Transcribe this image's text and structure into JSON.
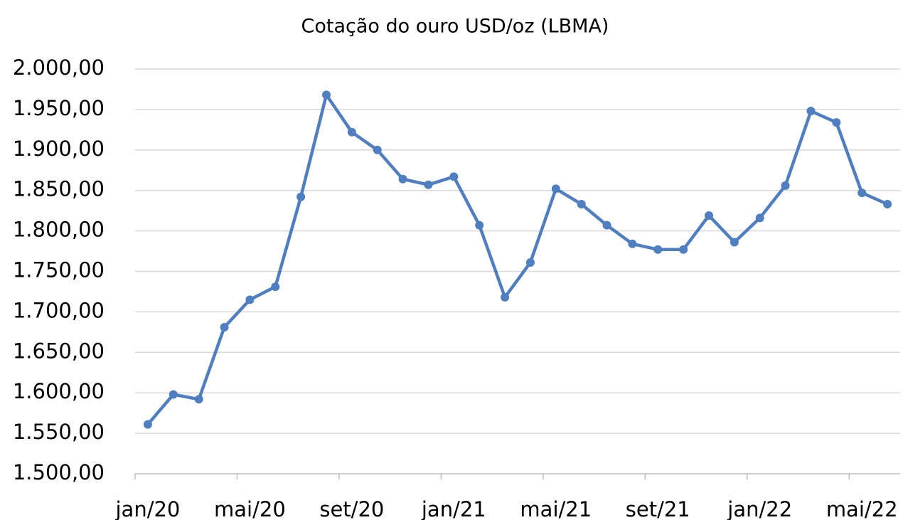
{
  "chart_data": {
    "type": "line",
    "title": "Cotação do ouro USD/oz (LBMA)",
    "categories": [
      "jan/20",
      null,
      null,
      null,
      "mai/20",
      null,
      null,
      null,
      "set/20",
      null,
      null,
      null,
      "jan/21",
      null,
      null,
      null,
      "mai/21",
      null,
      null,
      null,
      "set/21",
      null,
      null,
      null,
      "jan/22",
      null,
      null,
      null,
      "mai/22",
      null
    ],
    "series": [
      {
        "name": "USD/oz",
        "color": "#4f7fc0",
        "values": [
          1561,
          1598,
          1592,
          1681,
          1715,
          1731,
          1842,
          1968,
          1922,
          1900,
          1864,
          1857,
          1867,
          1807,
          1718,
          1761,
          1852,
          1833,
          1807,
          1784,
          1777,
          1777,
          1819,
          1786,
          1816,
          1856,
          1948,
          1934,
          1847,
          1833
        ]
      }
    ],
    "ylim": [
      1500,
      2000
    ],
    "yticks": [
      {
        "value": 1500,
        "label": "1.500,00"
      },
      {
        "value": 1550,
        "label": "1.550,00"
      },
      {
        "value": 1600,
        "label": "1.600,00"
      },
      {
        "value": 1650,
        "label": "1.650,00"
      },
      {
        "value": 1700,
        "label": "1.700,00"
      },
      {
        "value": 1750,
        "label": "1.750,00"
      },
      {
        "value": 1800,
        "label": "1.800,00"
      },
      {
        "value": 1850,
        "label": "1.850,00"
      },
      {
        "value": 1900,
        "label": "1.900,00"
      },
      {
        "value": 1950,
        "label": "1.950,00"
      },
      {
        "value": 2000,
        "label": "2.000,00"
      }
    ],
    "grid": true
  }
}
